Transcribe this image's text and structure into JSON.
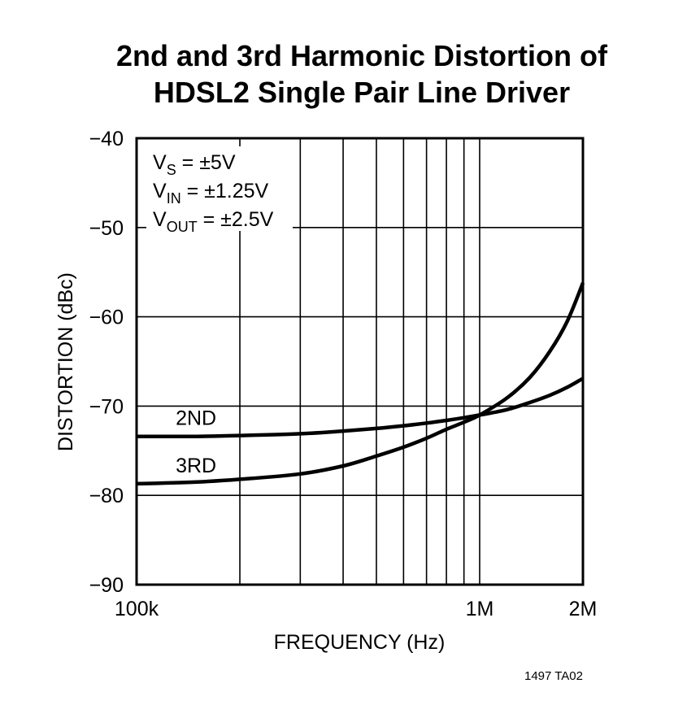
{
  "chart_data": {
    "type": "line",
    "title": "2nd and 3rd Harmonic Distortion of",
    "subtitle": "HDSL2 Single Pair Line Driver",
    "xlabel": "FREQUENCY (Hz)",
    "ylabel": "DISTORTION (dBc)",
    "x_scale": "log",
    "xlim": [
      100000,
      2000000
    ],
    "ylim": [
      -90,
      -40
    ],
    "x_ticks": [
      {
        "value": 100000,
        "label": "100k"
      },
      {
        "value": 1000000,
        "label": "1M"
      },
      {
        "value": 2000000,
        "label": "2M"
      }
    ],
    "y_ticks": [
      {
        "value": -40,
        "label": "−40"
      },
      {
        "value": -50,
        "label": "−50"
      },
      {
        "value": -60,
        "label": "−60"
      },
      {
        "value": -70,
        "label": "−70"
      },
      {
        "value": -80,
        "label": "−80"
      },
      {
        "value": -90,
        "label": "−90"
      }
    ],
    "grid": true,
    "x_gridlines": [
      200000,
      300000,
      400000,
      500000,
      600000,
      700000,
      800000,
      900000,
      1000000
    ],
    "y_gridlines": [
      -50,
      -60,
      -70,
      -80
    ],
    "series": [
      {
        "name": "2ND",
        "x": [
          100000,
          150000,
          200000,
          300000,
          400000,
          500000,
          600000,
          700000,
          800000,
          900000,
          1000000,
          1200000,
          1400000,
          1600000,
          1800000,
          2000000
        ],
        "y": [
          -73.4,
          -73.4,
          -73.3,
          -73.1,
          -72.8,
          -72.5,
          -72.2,
          -71.9,
          -71.6,
          -71.3,
          -71.0,
          -70.4,
          -69.6,
          -68.8,
          -67.9,
          -66.9
        ]
      },
      {
        "name": "3RD",
        "x": [
          100000,
          150000,
          200000,
          300000,
          400000,
          500000,
          600000,
          700000,
          800000,
          900000,
          1000000,
          1200000,
          1400000,
          1600000,
          1800000,
          2000000
        ],
        "y": [
          -78.7,
          -78.5,
          -78.2,
          -77.6,
          -76.7,
          -75.6,
          -74.6,
          -73.6,
          -72.6,
          -71.8,
          -71.0,
          -69.1,
          -66.8,
          -63.9,
          -60.5,
          -56.2
        ]
      }
    ],
    "annotations": {
      "vs_main": "V",
      "vs_sub": "S",
      "vs_rest": " = ±5V",
      "vin_main": "V",
      "vin_sub": "IN",
      "vin_rest": " = ±1.25V",
      "vout_main": "V",
      "vout_sub": "OUT",
      "vout_rest": " = ±2.5V"
    },
    "figure_code": "1497 TA02"
  }
}
